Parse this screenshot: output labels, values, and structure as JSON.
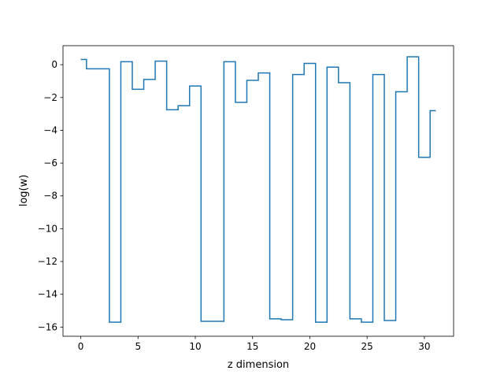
{
  "chart_data": {
    "type": "line",
    "step": "mid",
    "title": "",
    "xlabel": "z dimension",
    "ylabel": "log(w)",
    "xlim": [
      -1.55,
      32.55
    ],
    "ylim": [
      -16.56,
      1.16
    ],
    "x_ticks": [
      0,
      5,
      10,
      15,
      20,
      25,
      30
    ],
    "y_ticks": [
      0,
      -2,
      -4,
      -6,
      -8,
      -10,
      -12,
      -14,
      -16
    ],
    "grid": false,
    "series": [
      {
        "color": "#1f77b4",
        "x": [
          0,
          1,
          2,
          3,
          4,
          5,
          6,
          7,
          8,
          9,
          10,
          11,
          12,
          13,
          14,
          15,
          16,
          17,
          18,
          19,
          20,
          21,
          22,
          23,
          24,
          25,
          26,
          27,
          28,
          29,
          30,
          31
        ],
        "values": [
          0.32,
          -0.25,
          -0.25,
          -15.7,
          0.18,
          -1.5,
          -0.9,
          0.22,
          -2.75,
          -2.5,
          -1.3,
          -15.65,
          -15.65,
          0.18,
          -2.3,
          -0.95,
          -0.5,
          -15.5,
          -15.55,
          -0.6,
          0.08,
          -15.7,
          -0.15,
          -1.1,
          -15.5,
          -15.7,
          -0.6,
          -15.6,
          -1.65,
          0.48,
          -5.65,
          -2.8
        ]
      }
    ]
  }
}
